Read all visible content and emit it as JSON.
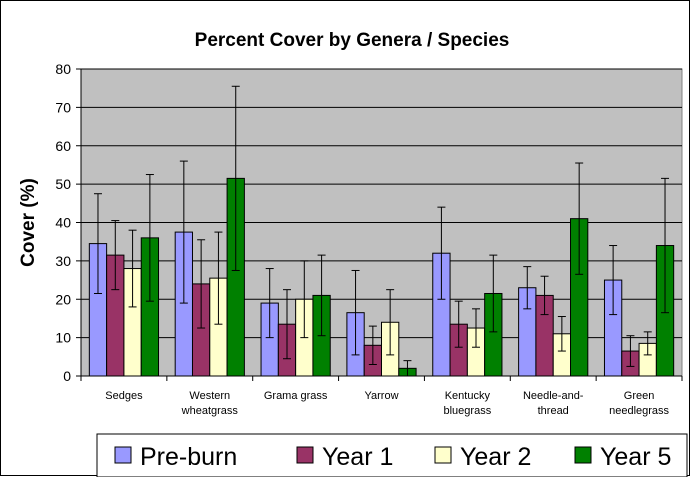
{
  "chart_data": {
    "type": "bar",
    "title": "Percent Cover by Genera / Species",
    "xlabel": "",
    "ylabel": "Cover (%)",
    "ylim": [
      0,
      80
    ],
    "yticks": [
      0,
      10,
      20,
      30,
      40,
      50,
      60,
      70,
      80
    ],
    "grid": true,
    "legend_position": "bottom",
    "plot_background": "#c0c0c0",
    "categories": [
      [
        "Sedges"
      ],
      [
        "Western",
        "wheatgrass"
      ],
      [
        "Grama grass"
      ],
      [
        "Yarrow"
      ],
      [
        "Kentucky",
        "bluegrass"
      ],
      [
        "Needle-and-",
        "thread"
      ],
      [
        "Green",
        "needlegrass"
      ]
    ],
    "series": [
      {
        "name": "Pre-burn",
        "color": "#9999ff",
        "values": [
          34.5,
          37.5,
          19,
          16.5,
          32,
          23,
          25
        ],
        "error": [
          13,
          18.5,
          9,
          11,
          12,
          5.5,
          9
        ]
      },
      {
        "name": "Year 1",
        "color": "#993366",
        "values": [
          31.5,
          24,
          13.5,
          8,
          13.5,
          21,
          6.5
        ],
        "error": [
          9,
          11.5,
          9,
          5,
          6,
          5,
          4
        ]
      },
      {
        "name": "Year 2",
        "color": "#ffffcc",
        "values": [
          28,
          25.5,
          20,
          14,
          12.5,
          11,
          8.5
        ],
        "error": [
          10,
          12,
          10,
          8.5,
          5,
          4.5,
          3
        ]
      },
      {
        "name": "Year 5",
        "color": "#008000",
        "values": [
          36,
          51.5,
          21,
          2,
          21.5,
          41,
          34
        ],
        "error": [
          16.5,
          24,
          10.5,
          2,
          10,
          14.5,
          17.5
        ]
      }
    ]
  }
}
